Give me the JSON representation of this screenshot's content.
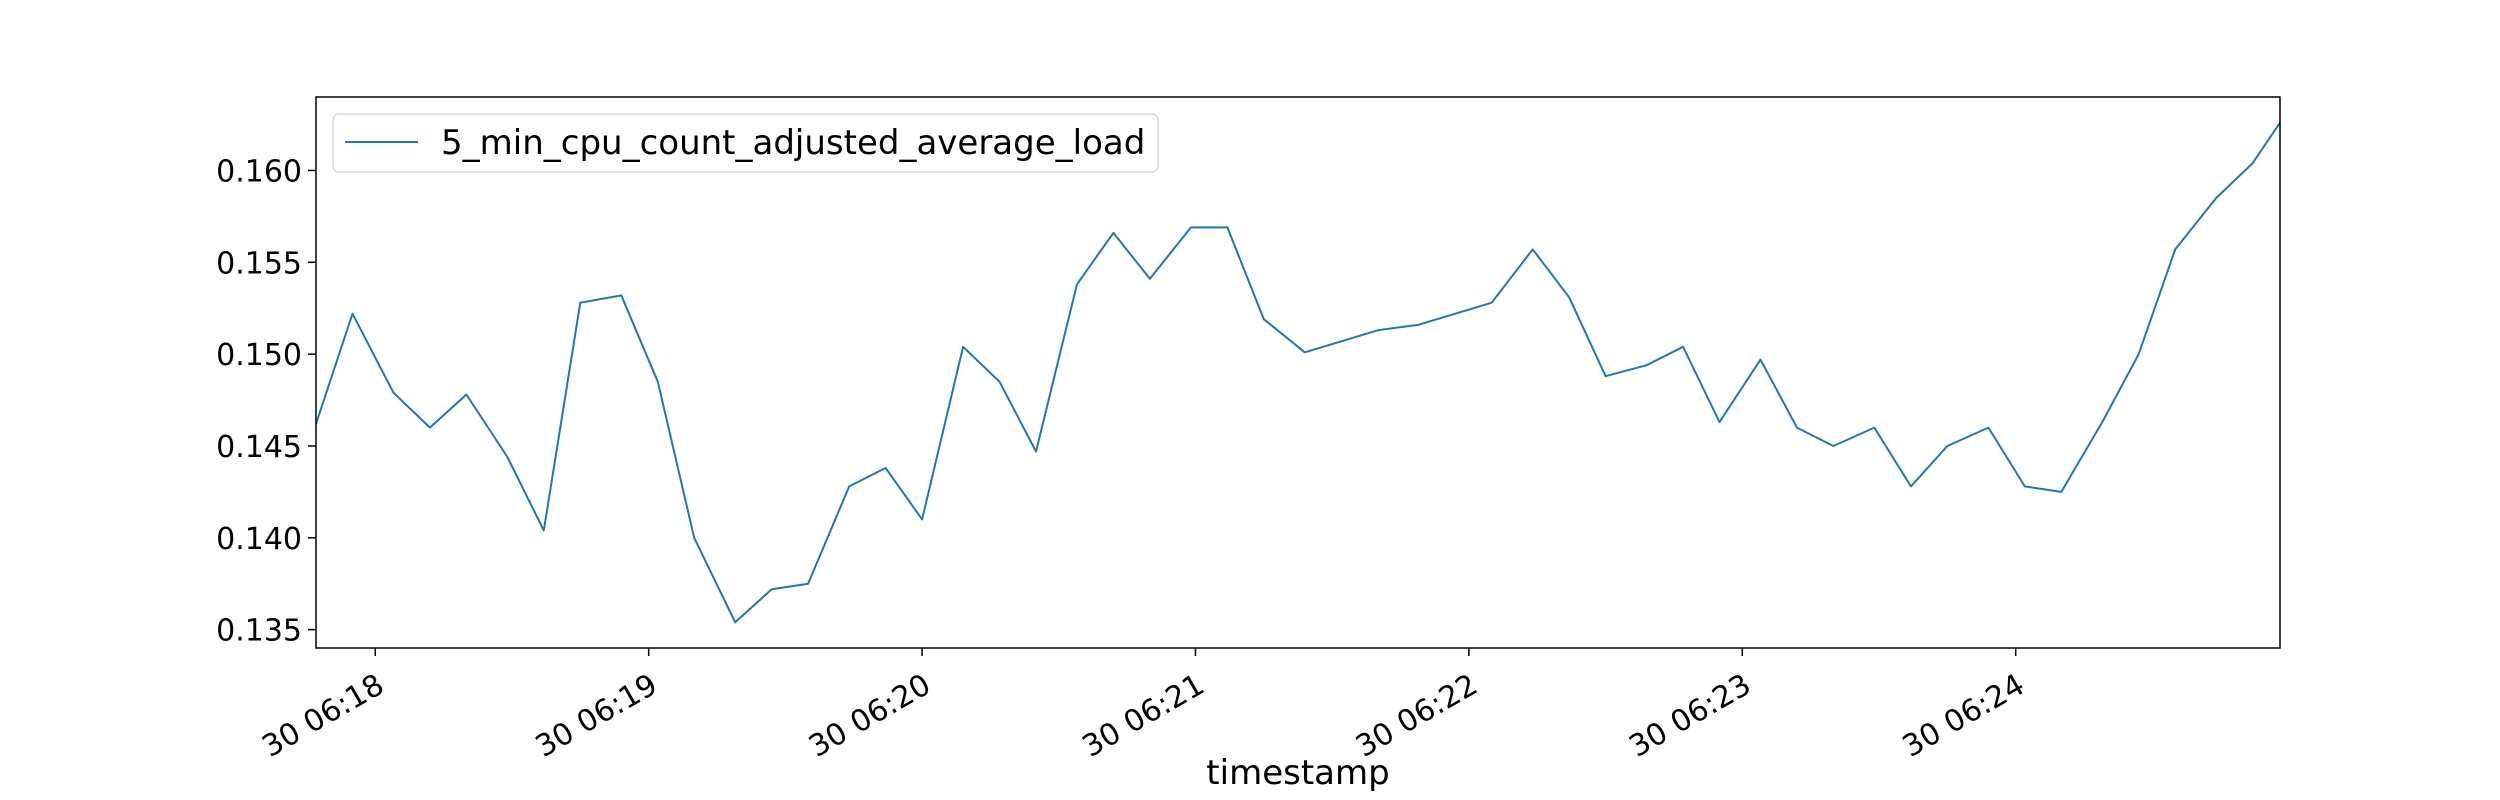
{
  "chart_data": {
    "type": "line",
    "title": "",
    "xlabel": "timestamp",
    "ylabel": "",
    "xlim": [
      "06:17:47",
      "06:24:58"
    ],
    "ylim": [
      0.134,
      0.164
    ],
    "y_ticks": [
      {
        "value": 0.135,
        "label": "0.135"
      },
      {
        "value": 0.14,
        "label": "0.140"
      },
      {
        "value": 0.145,
        "label": "0.145"
      },
      {
        "value": 0.15,
        "label": "0.150"
      },
      {
        "value": 0.155,
        "label": "0.155"
      },
      {
        "value": 0.16,
        "label": "0.160"
      }
    ],
    "x_ticks": [
      {
        "value": "06:18:00",
        "label": "30 06:18"
      },
      {
        "value": "06:19:00",
        "label": "30 06:19"
      },
      {
        "value": "06:20:00",
        "label": "30 06:20"
      },
      {
        "value": "06:21:00",
        "label": "30 06:21"
      },
      {
        "value": "06:22:00",
        "label": "30 06:22"
      },
      {
        "value": "06:23:00",
        "label": "30 06:23"
      },
      {
        "value": "06:24:00",
        "label": "30 06:24"
      }
    ],
    "legend_position": "top-left",
    "grid": false,
    "series": [
      {
        "name": "5_min_cpu_count_adjusted_average_load",
        "color": "#1f77b4",
        "points": [
          [
            "06:17:47",
            0.1462
          ],
          [
            "06:17:55",
            0.1522
          ],
          [
            "06:18:04",
            0.1479
          ],
          [
            "06:18:12",
            0.146
          ],
          [
            "06:18:20",
            0.1478
          ],
          [
            "06:18:29",
            0.1444
          ],
          [
            "06:18:37",
            0.1404
          ],
          [
            "06:18:45",
            0.1528
          ],
          [
            "06:18:54",
            0.1532
          ],
          [
            "06:19:02",
            0.1485
          ],
          [
            "06:19:10",
            0.14
          ],
          [
            "06:19:19",
            0.1354
          ],
          [
            "06:19:27",
            0.1372
          ],
          [
            "06:19:35",
            0.1375
          ],
          [
            "06:19:44",
            0.1428
          ],
          [
            "06:19:52",
            0.1438
          ],
          [
            "06:20:00",
            0.141
          ],
          [
            "06:20:09",
            0.1504
          ],
          [
            "06:20:17",
            0.1485
          ],
          [
            "06:20:25",
            0.1447
          ],
          [
            "06:20:34",
            0.1538
          ],
          [
            "06:20:42",
            0.1566
          ],
          [
            "06:20:50",
            0.1541
          ],
          [
            "06:20:59",
            0.1569
          ],
          [
            "06:21:07",
            0.1569
          ],
          [
            "06:21:15",
            0.1519
          ],
          [
            "06:21:24",
            0.1501
          ],
          [
            "06:21:32",
            0.1507
          ],
          [
            "06:21:40",
            0.1513
          ],
          [
            "06:21:49",
            0.1516
          ],
          [
            "06:21:57",
            0.1522
          ],
          [
            "06:22:05",
            0.1528
          ],
          [
            "06:22:14",
            0.1557
          ],
          [
            "06:22:22",
            0.1531
          ],
          [
            "06:22:30",
            0.1488
          ],
          [
            "06:22:39",
            0.1494
          ],
          [
            "06:22:47",
            0.1504
          ],
          [
            "06:22:55",
            0.1463
          ],
          [
            "06:23:04",
            0.1497
          ],
          [
            "06:23:12",
            0.146
          ],
          [
            "06:23:20",
            0.145
          ],
          [
            "06:23:29",
            0.146
          ],
          [
            "06:23:37",
            0.1428
          ],
          [
            "06:23:45",
            0.145
          ],
          [
            "06:23:54",
            0.146
          ],
          [
            "06:24:02",
            0.1428
          ],
          [
            "06:24:10",
            0.1425
          ],
          [
            "06:24:19",
            0.1463
          ],
          [
            "06:24:27",
            0.15
          ],
          [
            "06:24:35",
            0.1557
          ],
          [
            "06:24:44",
            0.1585
          ],
          [
            "06:24:52",
            0.1604
          ],
          [
            "06:24:58",
            0.1626
          ]
        ]
      }
    ]
  }
}
